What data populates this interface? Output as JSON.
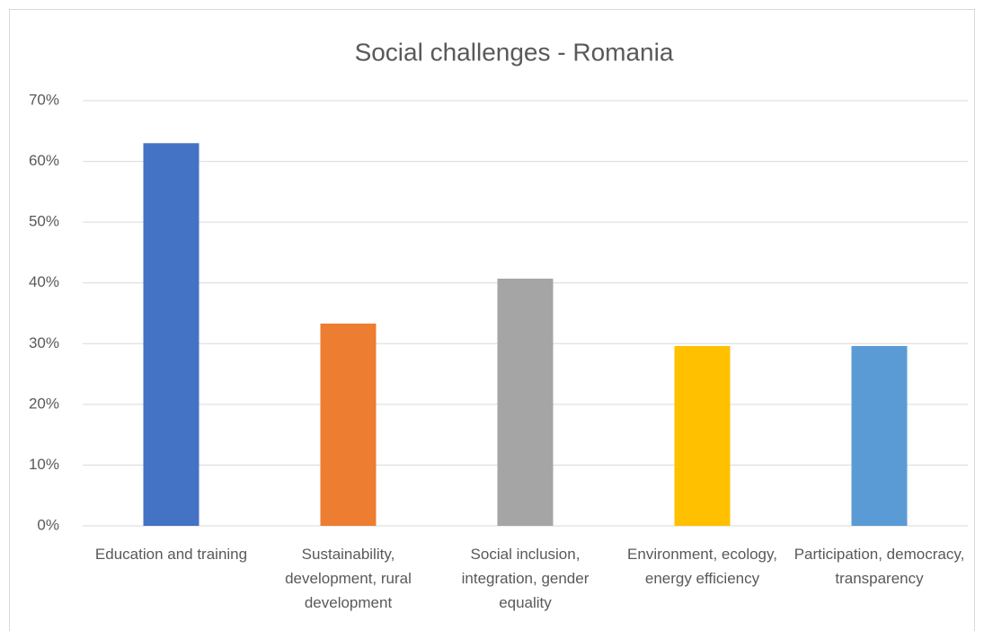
{
  "chart_data": {
    "type": "bar",
    "title": "Social challenges - Romania",
    "categories": [
      "Education and training",
      "Sustainability, development, rural development",
      "Social inclusion, integration, gender equality",
      "Environment, ecology, energy efficiency",
      "Participation, democracy, transparency"
    ],
    "values": [
      63,
      33.3,
      40.7,
      29.6,
      29.6
    ],
    "colors": [
      "#4472c4",
      "#ed7d31",
      "#a5a5a5",
      "#ffc000",
      "#5b9bd5"
    ],
    "ylim": [
      0,
      70
    ],
    "yticks": [
      {
        "value": 0,
        "label": "0%"
      },
      {
        "value": 10,
        "label": "10%"
      },
      {
        "value": 20,
        "label": "20%"
      },
      {
        "value": 30,
        "label": "30%"
      },
      {
        "value": 40,
        "label": "40%"
      },
      {
        "value": 50,
        "label": "50%"
      },
      {
        "value": 60,
        "label": "60%"
      },
      {
        "value": 70,
        "label": "70%"
      }
    ],
    "grid": true
  }
}
